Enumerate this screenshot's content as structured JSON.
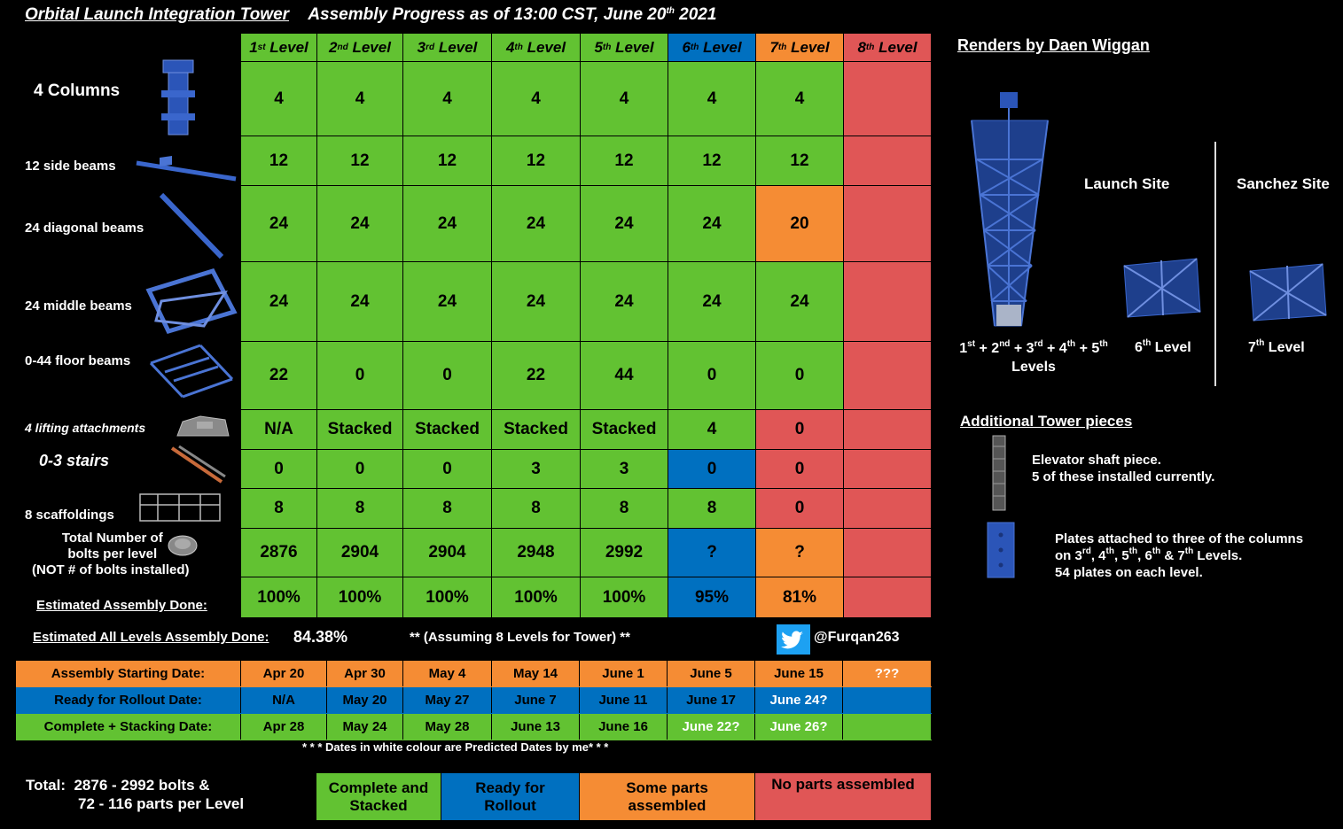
{
  "title": {
    "main": "Orbital Launch Integration Tower",
    "sub_prefix": "Assembly Progress as of 13:00 CST, June 20",
    "sub_sup": "th",
    "sub_suffix": " 2021"
  },
  "levels": [
    {
      "num": "1",
      "sup": "st",
      "word": "Level"
    },
    {
      "num": "2",
      "sup": "nd",
      "word": "Level"
    },
    {
      "num": "3",
      "sup": "rd",
      "word": "Level"
    },
    {
      "num": "4",
      "sup": "th",
      "word": "Level"
    },
    {
      "num": "5",
      "sup": "th",
      "word": "Level"
    },
    {
      "num": "6",
      "sup": "th",
      "word": "Level"
    },
    {
      "num": "7",
      "sup": "th",
      "word": "Level"
    },
    {
      "num": "8",
      "sup": "th",
      "word": "Level"
    }
  ],
  "header_colors": [
    "G",
    "G",
    "G",
    "G",
    "G",
    "B",
    "O",
    "R"
  ],
  "rows": [
    {
      "label": "4 Columns",
      "values": [
        "4",
        "4",
        "4",
        "4",
        "4",
        "4",
        "4",
        ""
      ],
      "colors": [
        "G",
        "G",
        "G",
        "G",
        "G",
        "G",
        "G",
        "R"
      ]
    },
    {
      "label": "12 side beams",
      "values": [
        "12",
        "12",
        "12",
        "12",
        "12",
        "12",
        "12",
        ""
      ],
      "colors": [
        "G",
        "G",
        "G",
        "G",
        "G",
        "G",
        "G",
        "R"
      ]
    },
    {
      "label": "24 diagonal beams",
      "values": [
        "24",
        "24",
        "24",
        "24",
        "24",
        "24",
        "20",
        ""
      ],
      "colors": [
        "G",
        "G",
        "G",
        "G",
        "G",
        "G",
        "O",
        "R"
      ]
    },
    {
      "label": "24 middle beams",
      "values": [
        "24",
        "24",
        "24",
        "24",
        "24",
        "24",
        "24",
        ""
      ],
      "colors": [
        "G",
        "G",
        "G",
        "G",
        "G",
        "G",
        "G",
        "R"
      ]
    },
    {
      "label": "0-44 floor beams",
      "values": [
        "22",
        "0",
        "0",
        "22",
        "44",
        "0",
        "0",
        ""
      ],
      "colors": [
        "G",
        "G",
        "G",
        "G",
        "G",
        "G",
        "G",
        "R"
      ]
    },
    {
      "label": "4 lifting attachments",
      "values": [
        "N/A",
        "Stacked",
        "Stacked",
        "Stacked",
        "Stacked",
        "4",
        "0",
        ""
      ],
      "colors": [
        "G",
        "G",
        "G",
        "G",
        "G",
        "G",
        "R",
        "R"
      ]
    },
    {
      "label": "0-3 stairs",
      "values": [
        "0",
        "0",
        "0",
        "3",
        "3",
        "0",
        "0",
        ""
      ],
      "colors": [
        "G",
        "G",
        "G",
        "G",
        "G",
        "B",
        "R",
        "R"
      ]
    },
    {
      "label": "8 scaffoldings",
      "values": [
        "8",
        "8",
        "8",
        "8",
        "8",
        "8",
        "0",
        ""
      ],
      "colors": [
        "G",
        "G",
        "G",
        "G",
        "G",
        "G",
        "R",
        "R"
      ]
    },
    {
      "label_lines": [
        "Total Number of",
        "bolts per level",
        "(NOT # of bolts installed)"
      ],
      "values": [
        "2876",
        "2904",
        "2904",
        "2948",
        "2992",
        "?",
        "?",
        ""
      ],
      "colors": [
        "G",
        "G",
        "G",
        "G",
        "G",
        "B",
        "O",
        "R"
      ]
    },
    {
      "label": "Estimated Assembly Done:",
      "values": [
        "100%",
        "100%",
        "100%",
        "100%",
        "100%",
        "95%",
        "81%",
        ""
      ],
      "colors": [
        "G",
        "G",
        "G",
        "G",
        "G",
        "B",
        "O",
        "R"
      ]
    }
  ],
  "summary": {
    "all_levels_label": "Estimated All Levels Assembly Done:",
    "all_levels_value": "84.38%",
    "assumption": "** (Assuming 8 Levels for Tower) **",
    "twitter_handle": "@Furqan263"
  },
  "date_rows": [
    {
      "label": "Assembly Starting Date:",
      "color": "O",
      "values": [
        "Apr 20",
        "Apr 30",
        "May 4",
        "May 14",
        "June 1",
        "June 5",
        "June 15",
        "???"
      ],
      "white": [
        false,
        false,
        false,
        false,
        false,
        false,
        false,
        true
      ]
    },
    {
      "label": "Ready for Rollout Date:",
      "color": "B",
      "values": [
        "N/A",
        "May 20",
        "May 27",
        "June 7",
        "June 11",
        "June 17",
        "June 24?",
        ""
      ],
      "white": [
        false,
        false,
        false,
        false,
        false,
        false,
        true,
        false
      ]
    },
    {
      "label": "Complete + Stacking Date:",
      "color": "G",
      "values": [
        "Apr 28",
        "May 24",
        "May 28",
        "June 13",
        "June 16",
        "June 22?",
        "June 26?",
        ""
      ],
      "white": [
        false,
        false,
        false,
        false,
        false,
        true,
        true,
        false
      ]
    }
  ],
  "dates_note": "* * * Dates in white colour are Predicted Dates by me* * *",
  "totals": {
    "line1": "Total:  2876 - 2992 bolts &",
    "line2": "72 - 116 parts per Level"
  },
  "legend": [
    {
      "text": "Complete and Stacked",
      "color": "G"
    },
    {
      "text": "Ready for Rollout",
      "color": "B"
    },
    {
      "text": "Some parts assembled",
      "color": "O"
    },
    {
      "text": "No parts assembled",
      "color": "R"
    }
  ],
  "renders": {
    "heading": "Renders by Daen Wiggan",
    "launch_site": "Launch Site",
    "sanchez_site": "Sanchez Site",
    "cap_levels_1": "1st + 2nd + 3rd + 4th + 5th",
    "cap_levels_2": "Levels",
    "cap_6": "6th Level",
    "cap_7": "7th Level"
  },
  "additional": {
    "heading": "Additional Tower pieces",
    "elevator_line1": "Elevator shaft piece.",
    "elevator_line2": "5 of these installed currently.",
    "plates_line1": "Plates attached to three of the columns",
    "plates_line2": "on 3rd, 4th, 5th, 6th & 7th Levels.",
    "plates_line3": "54 plates on each level."
  },
  "colors": {
    "G": "#62c232",
    "B": "#0070c0",
    "O": "#f58c34",
    "R": "#e05656",
    "icon_blue": "#2b55b8",
    "twitter": "#1da1f2"
  }
}
